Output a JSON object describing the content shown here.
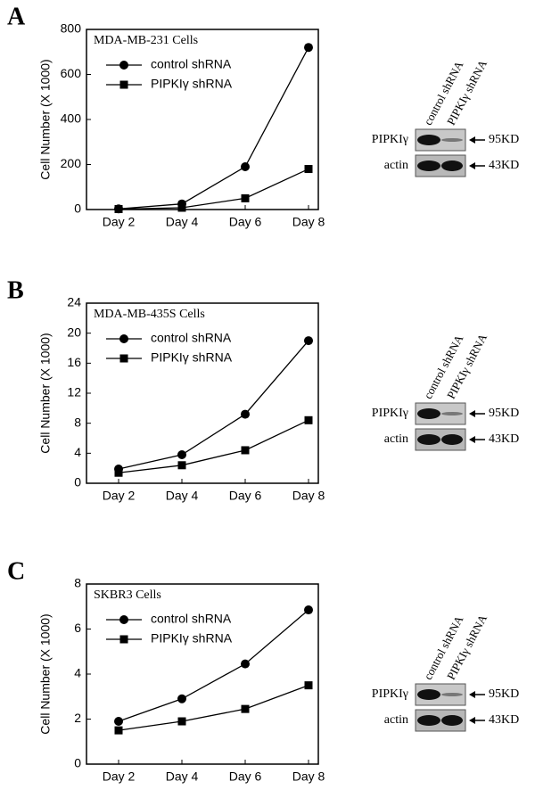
{
  "chart_data": [
    {
      "type": "line",
      "panel": "A",
      "title": "MDA-MB-231 Cells",
      "y_label": "Cell Number (X 1000)",
      "categories": [
        "Day 2",
        "Day 4",
        "Day 6",
        "Day 8"
      ],
      "series": [
        {
          "name": "control shRNA",
          "color": "#000000",
          "marker": "circle",
          "values": [
            3,
            25,
            190,
            720
          ]
        },
        {
          "name": "PIPKIγ shRNA",
          "color": "#000000",
          "marker": "square",
          "values": [
            2,
            8,
            50,
            180
          ]
        }
      ],
      "ylim": [
        0,
        800
      ],
      "yticks": [
        0,
        200,
        400,
        600,
        800
      ],
      "blot": {
        "lanes": [
          "control shRNA",
          "PIPKIγ shRNA"
        ],
        "rows": [
          {
            "label": "PIPKIγ",
            "marker": "95KD"
          },
          {
            "label": "actin",
            "marker": "43KD"
          }
        ]
      }
    },
    {
      "type": "line",
      "panel": "B",
      "title": "MDA-MB-435S Cells",
      "y_label": "Cell Number (X 1000)",
      "categories": [
        "Day 2",
        "Day 4",
        "Day 6",
        "Day 8"
      ],
      "series": [
        {
          "name": "control shRNA",
          "color": "#000000",
          "marker": "circle",
          "values": [
            1.9,
            3.8,
            9.2,
            19
          ]
        },
        {
          "name": "PIPKIγ shRNA",
          "color": "#000000",
          "marker": "square",
          "values": [
            1.4,
            2.4,
            4.4,
            8.4
          ]
        }
      ],
      "ylim": [
        0,
        24
      ],
      "yticks": [
        0,
        4,
        8,
        12,
        16,
        20,
        24
      ],
      "blot": {
        "lanes": [
          "control shRNA",
          "PIPKIγ shRNA"
        ],
        "rows": [
          {
            "label": "PIPKIγ",
            "marker": "95KD"
          },
          {
            "label": "actin",
            "marker": "43KD"
          }
        ]
      }
    },
    {
      "type": "line",
      "panel": "C",
      "title": "SKBR3 Cells",
      "y_label": "Cell Number (X 1000)",
      "categories": [
        "Day 2",
        "Day 4",
        "Day 6",
        "Day 8"
      ],
      "series": [
        {
          "name": "control shRNA",
          "color": "#000000",
          "marker": "circle",
          "values": [
            1.9,
            2.9,
            4.45,
            6.85
          ]
        },
        {
          "name": "PIPKIγ shRNA",
          "color": "#000000",
          "marker": "square",
          "values": [
            1.5,
            1.9,
            2.45,
            3.5
          ]
        }
      ],
      "ylim": [
        0,
        8
      ],
      "yticks": [
        0,
        2,
        4,
        6,
        8
      ],
      "blot": {
        "lanes": [
          "control shRNA",
          "PIPKIγ shRNA"
        ],
        "rows": [
          {
            "label": "PIPKIγ",
            "marker": "95KD"
          },
          {
            "label": "actin",
            "marker": "43KD"
          }
        ]
      }
    }
  ]
}
